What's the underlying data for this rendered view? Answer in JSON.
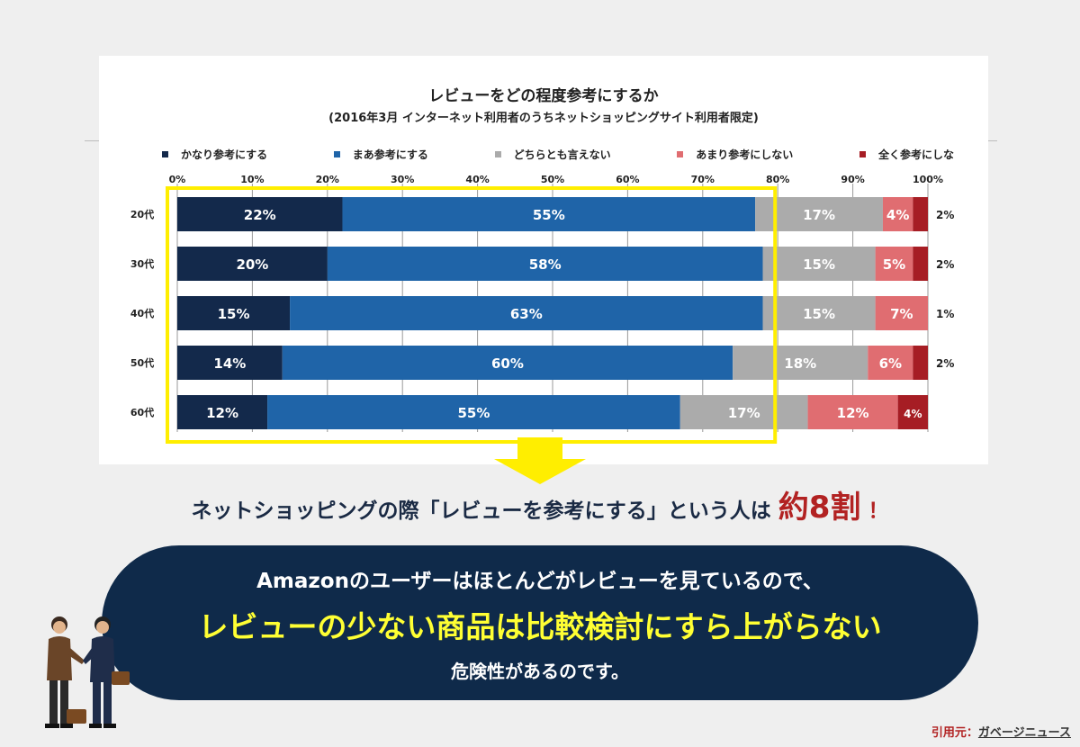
{
  "chart_data": {
    "type": "bar",
    "orientation": "horizontal",
    "stacked": true,
    "title": "レビューをどの程度参考にするか",
    "subtitle": "(2016年3月 インターネット利用者のうちネットショッピングサイト利用者限定)",
    "categories": [
      "20代",
      "30代",
      "40代",
      "50代",
      "60代"
    ],
    "series": [
      {
        "name": "かなり参考にする",
        "color": "#13294b",
        "values": [
          22,
          20,
          15,
          14,
          12
        ],
        "labels": [
          "22%",
          "20%",
          "15%",
          "14%",
          "12%"
        ]
      },
      {
        "name": "まあ参考にする",
        "color": "#1f64a8",
        "values": [
          55,
          58,
          63,
          60,
          55
        ],
        "labels": [
          "55%",
          "58%",
          "63%",
          "60%",
          "55%"
        ]
      },
      {
        "name": "どちらとも言えない",
        "color": "#ababab",
        "values": [
          17,
          15,
          15,
          18,
          17
        ],
        "labels": [
          "17%",
          "15%",
          "15%",
          "18%",
          "17%"
        ]
      },
      {
        "name": "あまり参考にしない",
        "color": "#e06d71",
        "values": [
          4,
          5,
          7,
          6,
          12
        ],
        "labels": [
          "4%",
          "5%",
          "7%",
          "6%",
          "12%"
        ]
      },
      {
        "name": "全く参考にしな",
        "color": "#a61d24",
        "values": [
          2,
          2,
          1,
          2,
          4
        ],
        "labels": [
          "2%",
          "2%",
          "1%",
          "2%",
          "4%"
        ]
      }
    ],
    "x_ticks": [
      "0%",
      "10%",
      "20%",
      "30%",
      "40%",
      "50%",
      "60%",
      "70%",
      "80%",
      "90%",
      "100%"
    ],
    "xlim": [
      0,
      100
    ],
    "grid": true,
    "legend": "top",
    "highlight": {
      "color": "#ffee00",
      "range": [
        0,
        80
      ]
    }
  },
  "headline": {
    "prefix": "ネットショッピングの際「レビューを参考にする」という人は",
    "emphasis": "約8割",
    "suffix": "！"
  },
  "callout": {
    "line1": "Amazonのユーザーはほとんどがレビューを見ているので、",
    "line2": "レビューの少ない商品は比較検討にすら上がらない",
    "line3": "危険性があるのです。"
  },
  "source": {
    "label": "引用元：",
    "link": "ガベージニュース"
  },
  "colors": {
    "accent_red": "#b22222",
    "navy": "#0f2a4a",
    "highlight_yellow": "#ffff33"
  }
}
